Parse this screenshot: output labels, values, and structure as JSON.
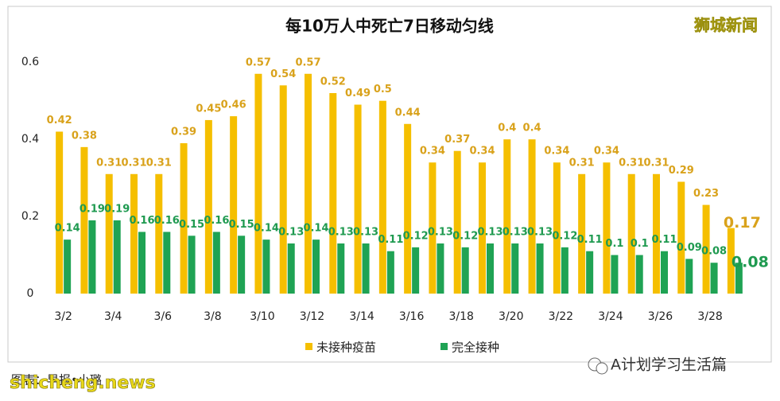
{
  "chart_data": {
    "type": "bar",
    "title": "每10万人中死亡7日移动匀线",
    "categories": [
      "3/2",
      null,
      "3/4",
      null,
      "3/6",
      null,
      "3/8",
      null,
      "3/10",
      null,
      "3/12",
      null,
      "3/14",
      null,
      "3/16",
      null,
      "3/18",
      null,
      "3/20",
      null,
      "3/22",
      null,
      "3/24",
      null,
      "3/26",
      null,
      "3/28",
      null
    ],
    "series": [
      {
        "name": "未接种疫苗",
        "color": "#f5bf00",
        "values": [
          0.42,
          0.38,
          0.31,
          0.31,
          0.31,
          0.39,
          0.45,
          0.46,
          0.57,
          0.54,
          0.57,
          0.52,
          0.49,
          0.5,
          0.44,
          0.34,
          0.37,
          0.34,
          0.4,
          0.4,
          0.34,
          0.31,
          0.34,
          0.31,
          0.31,
          0.29,
          0.23,
          0.17
        ]
      },
      {
        "name": "完全接种",
        "color": "#1fa354",
        "values": [
          0.14,
          0.19,
          0.19,
          0.16,
          0.16,
          0.15,
          0.16,
          0.15,
          0.14,
          0.13,
          0.14,
          0.13,
          0.13,
          0.11,
          0.12,
          0.13,
          0.12,
          0.13,
          0.13,
          0.13,
          0.12,
          0.11,
          0.1,
          0.1,
          0.11,
          0.09,
          0.08,
          0.08
        ]
      }
    ],
    "ylim": [
      0,
      0.65
    ],
    "yticks": [
      0,
      0.2,
      0.4,
      0.6
    ],
    "grid": false,
    "legend": "bottom",
    "source": "图表：早报•小璐",
    "watermarks": [
      "狮城新闻",
      "shicheng.news",
      "A计划学习生活篇"
    ]
  }
}
